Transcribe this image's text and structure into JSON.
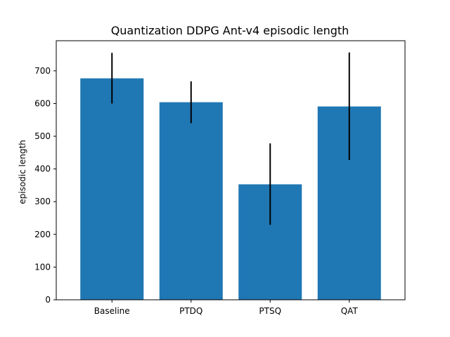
{
  "chart_data": {
    "type": "bar",
    "title": "Quantization DDPG Ant-v4 episodic length",
    "xlabel": "",
    "ylabel": "episodic length",
    "categories": [
      "Baseline",
      "PTDQ",
      "PTSQ",
      "QAT"
    ],
    "values": [
      677,
      604,
      353,
      591
    ],
    "error_low": [
      600,
      540,
      229,
      427
    ],
    "error_high": [
      755,
      668,
      478,
      756
    ],
    "ylim": [
      0,
      792
    ],
    "yticks": [
      0,
      100,
      200,
      300,
      400,
      500,
      600,
      700
    ],
    "grid": false,
    "bar_color": "#1f77b4",
    "error_color": "#000000"
  }
}
